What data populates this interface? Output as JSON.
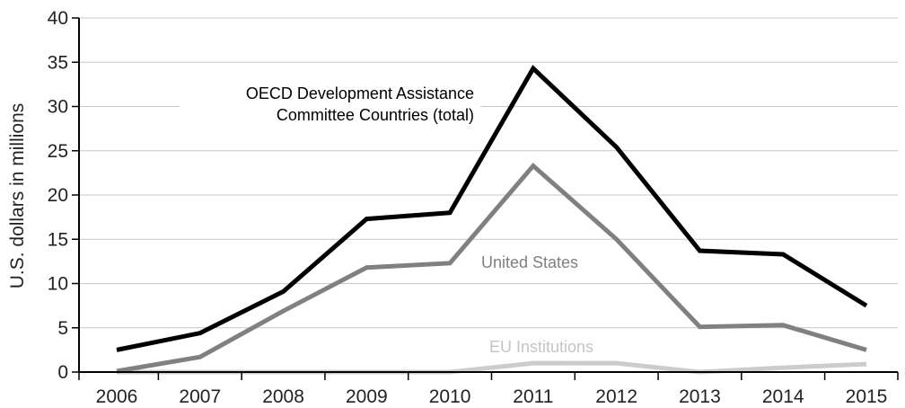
{
  "chart_data": {
    "type": "line",
    "ylabel": "U.S. dollars in millions",
    "xlabel": "",
    "categories": [
      "2006",
      "2007",
      "2008",
      "2009",
      "2010",
      "2011",
      "2012",
      "2013",
      "2014",
      "2015"
    ],
    "ylim": [
      0,
      40
    ],
    "yticks": [
      "0",
      "5",
      "10",
      "15",
      "20",
      "25",
      "30",
      "35",
      "40"
    ],
    "grid": true,
    "series": [
      {
        "name": "OECD Development Assistance Committee Countries (total)",
        "label_lines": [
          "OECD Development Assistance",
          "Committee Countries (total)"
        ],
        "color": "#000000",
        "values": [
          2.5,
          4.4,
          9.1,
          17.3,
          18.0,
          34.3,
          25.4,
          13.7,
          13.3,
          7.5
        ]
      },
      {
        "name": "United States",
        "label_lines": [
          "United States"
        ],
        "color": "#808080",
        "values": [
          0.1,
          1.7,
          6.9,
          11.8,
          12.3,
          23.3,
          15.0,
          5.1,
          5.3,
          2.5
        ]
      },
      {
        "name": "EU Institutions",
        "label_lines": [
          "EU Institutions"
        ],
        "color": "#cccccc",
        "values": [
          0.0,
          0.0,
          0.0,
          0.0,
          0.0,
          1.0,
          1.0,
          0.0,
          0.5,
          0.9
        ]
      }
    ]
  }
}
